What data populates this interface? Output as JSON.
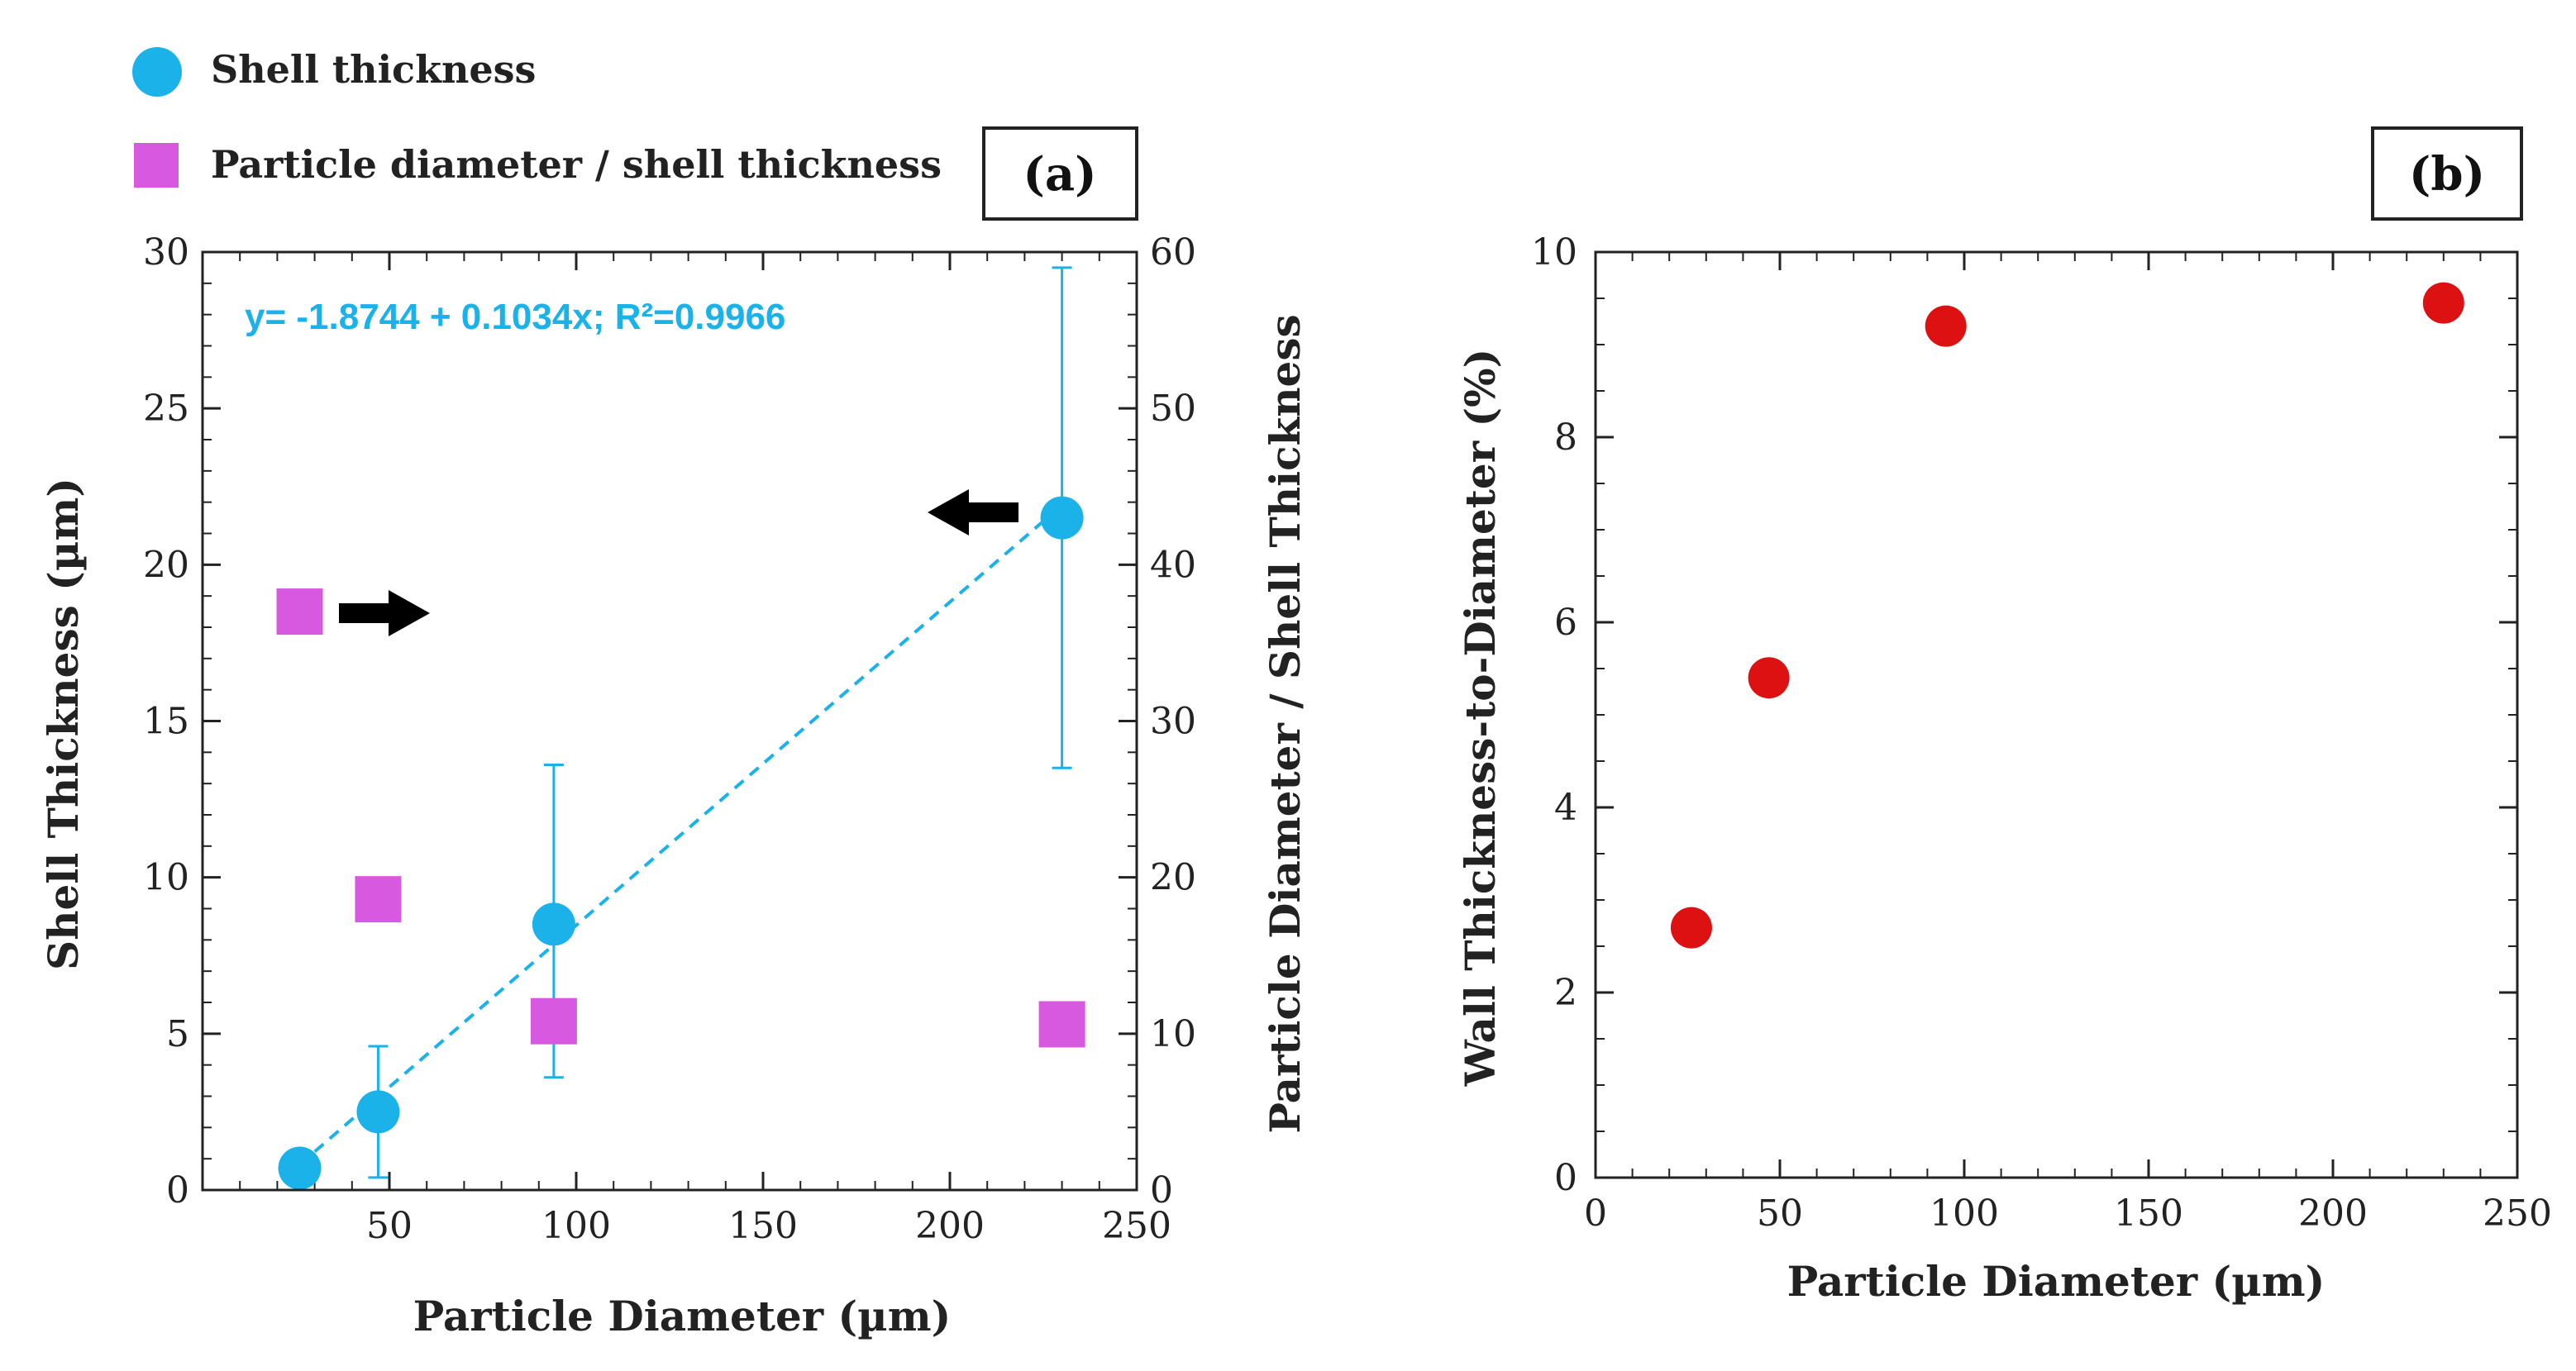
{
  "colors": {
    "shell": "#1ab2e8",
    "ratio": "#d659e0",
    "ratio_b": "#dd1111",
    "axis": "#222222"
  },
  "legend": {
    "shell_label": "Shell thickness",
    "ratio_label": "Particle diameter / shell thickness"
  },
  "chart_data": [
    {
      "panel": "(a)",
      "type": "scatter",
      "xlabel": "Particle Diameter (µm)",
      "ylabel": "Shell Thickness (µm)",
      "y2label": "Particle Diameter / Shell Thickness",
      "xlim": [
        0,
        250
      ],
      "ylim": [
        0,
        30
      ],
      "y2lim": [
        0,
        60
      ],
      "x_ticks": [
        50,
        100,
        150,
        200,
        250
      ],
      "y_ticks": [
        0,
        5,
        10,
        15,
        20,
        25,
        30
      ],
      "y2_ticks": [
        0,
        10,
        20,
        30,
        40,
        50,
        60
      ],
      "equation": "y= -1.8744 + 0.1034x; R²=0.9966",
      "series": [
        {
          "name": "Shell thickness",
          "axis": "left",
          "x": [
            26,
            47,
            94,
            230
          ],
          "y": [
            0.7,
            2.5,
            8.5,
            21.5
          ],
          "err_low": [
            0.7,
            0.4,
            3.6,
            13.5
          ],
          "err_high": [
            0.7,
            4.6,
            13.6,
            29.5
          ]
        },
        {
          "name": "Particle diameter / shell thickness",
          "axis": "right",
          "x": [
            26,
            47,
            94,
            230
          ],
          "y": [
            37,
            18.6,
            10.8,
            10.6
          ]
        }
      ],
      "fit": {
        "intercept": -1.8744,
        "slope": 0.1034,
        "x_range": [
          26,
          230
        ]
      }
    },
    {
      "panel": "(b)",
      "type": "scatter",
      "xlabel": "Particle Diameter (µm)",
      "ylabel": "Wall Thickness-to-Diameter (%)",
      "xlim": [
        0,
        250
      ],
      "ylim": [
        0,
        10
      ],
      "x_ticks": [
        0,
        50,
        100,
        150,
        200,
        250
      ],
      "y_ticks": [
        0,
        2,
        4,
        6,
        8,
        10
      ],
      "series": [
        {
          "name": "Wall Thickness-to-Diameter",
          "x": [
            26,
            47,
            95,
            230
          ],
          "y": [
            2.7,
            5.4,
            9.2,
            9.45
          ]
        }
      ]
    }
  ]
}
